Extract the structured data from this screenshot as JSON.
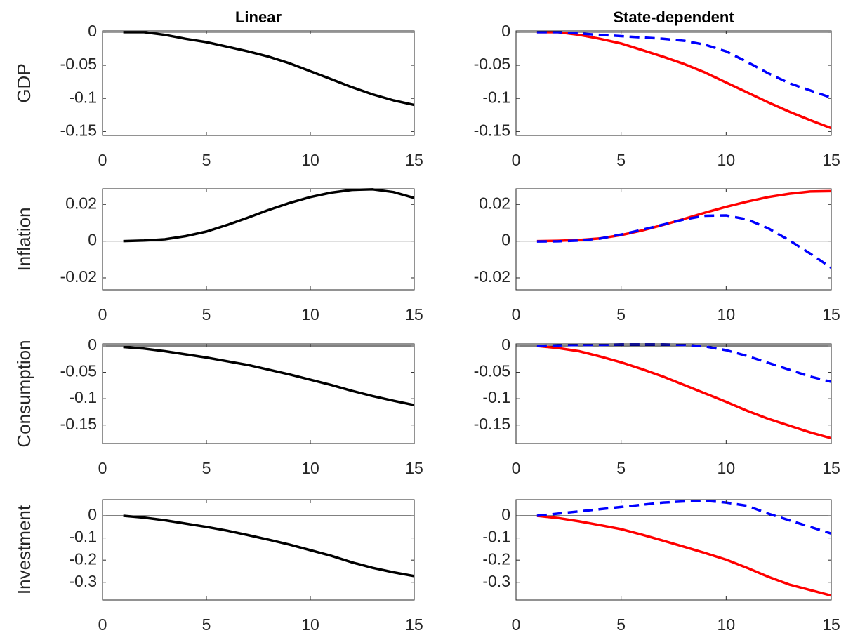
{
  "chart_data": [
    {
      "type": "line",
      "title": "Linear",
      "ylabel": "GDP",
      "x": [
        1,
        2,
        3,
        4,
        5,
        6,
        7,
        8,
        9,
        10,
        11,
        12,
        13,
        14,
        15
      ],
      "xlim": [
        0,
        15
      ],
      "xticks": [
        0,
        5,
        10,
        15
      ],
      "ylim": [
        -0.156,
        0.002
      ],
      "yticks": [
        -0.15,
        -0.1,
        -0.05,
        0
      ],
      "zero_line": true,
      "series": [
        {
          "color": "#000000",
          "linestyle": "solid",
          "values": [
            0,
            0,
            -0.004,
            -0.01,
            -0.015,
            -0.022,
            -0.029,
            -0.037,
            -0.047,
            -0.059,
            -0.071,
            -0.083,
            -0.094,
            -0.103,
            -0.11
          ]
        }
      ]
    },
    {
      "type": "line",
      "title": "State-dependent",
      "x": [
        1,
        2,
        3,
        4,
        5,
        6,
        7,
        8,
        9,
        10,
        11,
        12,
        13,
        14,
        15
      ],
      "xlim": [
        0,
        15
      ],
      "xticks": [
        0,
        5,
        10,
        15
      ],
      "ylim": [
        -0.156,
        0.002
      ],
      "yticks": [
        -0.15,
        -0.1,
        -0.05,
        0
      ],
      "zero_line": true,
      "series": [
        {
          "color": "#ff0000",
          "linestyle": "solid",
          "values": [
            0,
            0,
            -0.004,
            -0.01,
            -0.017,
            -0.027,
            -0.037,
            -0.048,
            -0.061,
            -0.076,
            -0.091,
            -0.106,
            -0.12,
            -0.133,
            -0.145
          ]
        },
        {
          "color": "#0000ff",
          "linestyle": "dashed",
          "values": [
            0,
            0,
            -0.002,
            -0.004,
            -0.006,
            -0.008,
            -0.01,
            -0.013,
            -0.019,
            -0.029,
            -0.045,
            -0.062,
            -0.077,
            -0.088,
            -0.099
          ]
        }
      ]
    },
    {
      "type": "line",
      "ylabel": "Inflation",
      "x": [
        1,
        2,
        3,
        4,
        5,
        6,
        7,
        8,
        9,
        10,
        11,
        12,
        13,
        14,
        15
      ],
      "xlim": [
        0,
        15
      ],
      "xticks": [
        0,
        5,
        10,
        15
      ],
      "ylim": [
        -0.0265,
        0.0285
      ],
      "yticks": [
        -0.02,
        0,
        0.02
      ],
      "zero_line": true,
      "series": [
        {
          "color": "#000000",
          "linestyle": "solid",
          "values": [
            0,
            0.0003,
            0.001,
            0.0027,
            0.0052,
            0.0088,
            0.0128,
            0.017,
            0.0208,
            0.024,
            0.0264,
            0.0279,
            0.0282,
            0.0267,
            0.0235
          ]
        }
      ]
    },
    {
      "type": "line",
      "x": [
        1,
        2,
        3,
        4,
        5,
        6,
        7,
        8,
        9,
        10,
        11,
        12,
        13,
        14,
        15
      ],
      "xlim": [
        0,
        15
      ],
      "xticks": [
        0,
        5,
        10,
        15
      ],
      "ylim": [
        -0.0265,
        0.0285
      ],
      "yticks": [
        -0.02,
        0,
        0.02
      ],
      "zero_line": true,
      "series": [
        {
          "color": "#ff0000",
          "linestyle": "solid",
          "values": [
            0,
            0.0002,
            0.0006,
            0.0015,
            0.0033,
            0.0058,
            0.0088,
            0.0121,
            0.0155,
            0.0187,
            0.0215,
            0.024,
            0.0258,
            0.027,
            0.0272
          ]
        },
        {
          "color": "#0000ff",
          "linestyle": "dashed",
          "values": [
            -0.0002,
            -0.0001,
            0.0003,
            0.0014,
            0.0036,
            0.0062,
            0.009,
            0.0118,
            0.0138,
            0.014,
            0.0118,
            0.007,
            0.0005,
            -0.0068,
            -0.0145
          ]
        }
      ]
    },
    {
      "type": "line",
      "ylabel": "Consumption",
      "x": [
        1,
        2,
        3,
        4,
        5,
        6,
        7,
        8,
        9,
        10,
        11,
        12,
        13,
        14,
        15
      ],
      "xlim": [
        0,
        15
      ],
      "xticks": [
        0,
        5,
        10,
        15
      ],
      "ylim": [
        -0.185,
        0.004
      ],
      "yticks": [
        -0.15,
        -0.1,
        -0.05,
        0
      ],
      "zero_line": true,
      "series": [
        {
          "color": "#000000",
          "linestyle": "solid",
          "values": [
            -0.002,
            -0.005,
            -0.01,
            -0.016,
            -0.022,
            -0.029,
            -0.036,
            -0.045,
            -0.054,
            -0.064,
            -0.074,
            -0.085,
            -0.095,
            -0.104,
            -0.112
          ]
        }
      ]
    },
    {
      "type": "line",
      "x": [
        1,
        2,
        3,
        4,
        5,
        6,
        7,
        8,
        9,
        10,
        11,
        12,
        13,
        14,
        15
      ],
      "xlim": [
        0,
        15
      ],
      "xticks": [
        0,
        5,
        10,
        15
      ],
      "ylim": [
        -0.185,
        0.004
      ],
      "yticks": [
        -0.15,
        -0.1,
        -0.05,
        0
      ],
      "zero_line": true,
      "series": [
        {
          "color": "#ff0000",
          "linestyle": "solid",
          "values": [
            0,
            -0.004,
            -0.01,
            -0.02,
            -0.031,
            -0.044,
            -0.058,
            -0.074,
            -0.09,
            -0.106,
            -0.123,
            -0.138,
            -0.151,
            -0.164,
            -0.175
          ]
        },
        {
          "color": "#0000ff",
          "linestyle": "dashed",
          "values": [
            0,
            0.001,
            0.002,
            0.002,
            0.003,
            0.003,
            0.003,
            0.002,
            -0.001,
            -0.008,
            -0.019,
            -0.032,
            -0.045,
            -0.058,
            -0.068
          ]
        }
      ]
    },
    {
      "type": "line",
      "ylabel": "Investment",
      "x": [
        1,
        2,
        3,
        4,
        5,
        6,
        7,
        8,
        9,
        10,
        11,
        12,
        13,
        14,
        15
      ],
      "xlim": [
        0,
        15
      ],
      "xticks": [
        0,
        5,
        10,
        15
      ],
      "ylim": [
        -0.38,
        0.073
      ],
      "yticks": [
        -0.3,
        -0.2,
        -0.1,
        0
      ],
      "zero_line": true,
      "series": [
        {
          "color": "#000000",
          "linestyle": "solid",
          "values": [
            0,
            -0.008,
            -0.02,
            -0.035,
            -0.05,
            -0.067,
            -0.087,
            -0.108,
            -0.13,
            -0.155,
            -0.18,
            -0.21,
            -0.235,
            -0.255,
            -0.272
          ]
        }
      ]
    },
    {
      "type": "line",
      "x": [
        1,
        2,
        3,
        4,
        5,
        6,
        7,
        8,
        9,
        10,
        11,
        12,
        13,
        14,
        15
      ],
      "xlim": [
        0,
        15
      ],
      "xticks": [
        0,
        5,
        10,
        15
      ],
      "ylim": [
        -0.38,
        0.073
      ],
      "yticks": [
        -0.3,
        -0.2,
        -0.1,
        0
      ],
      "zero_line": true,
      "series": [
        {
          "color": "#ff0000",
          "linestyle": "solid",
          "values": [
            0,
            -0.01,
            -0.025,
            -0.042,
            -0.06,
            -0.085,
            -0.112,
            -0.14,
            -0.168,
            -0.198,
            -0.235,
            -0.275,
            -0.31,
            -0.335,
            -0.36
          ]
        },
        {
          "color": "#0000ff",
          "linestyle": "dashed",
          "values": [
            0,
            0.01,
            0.02,
            0.03,
            0.04,
            0.05,
            0.06,
            0.065,
            0.068,
            0.06,
            0.045,
            0.01,
            -0.02,
            -0.05,
            -0.08
          ]
        }
      ]
    }
  ]
}
